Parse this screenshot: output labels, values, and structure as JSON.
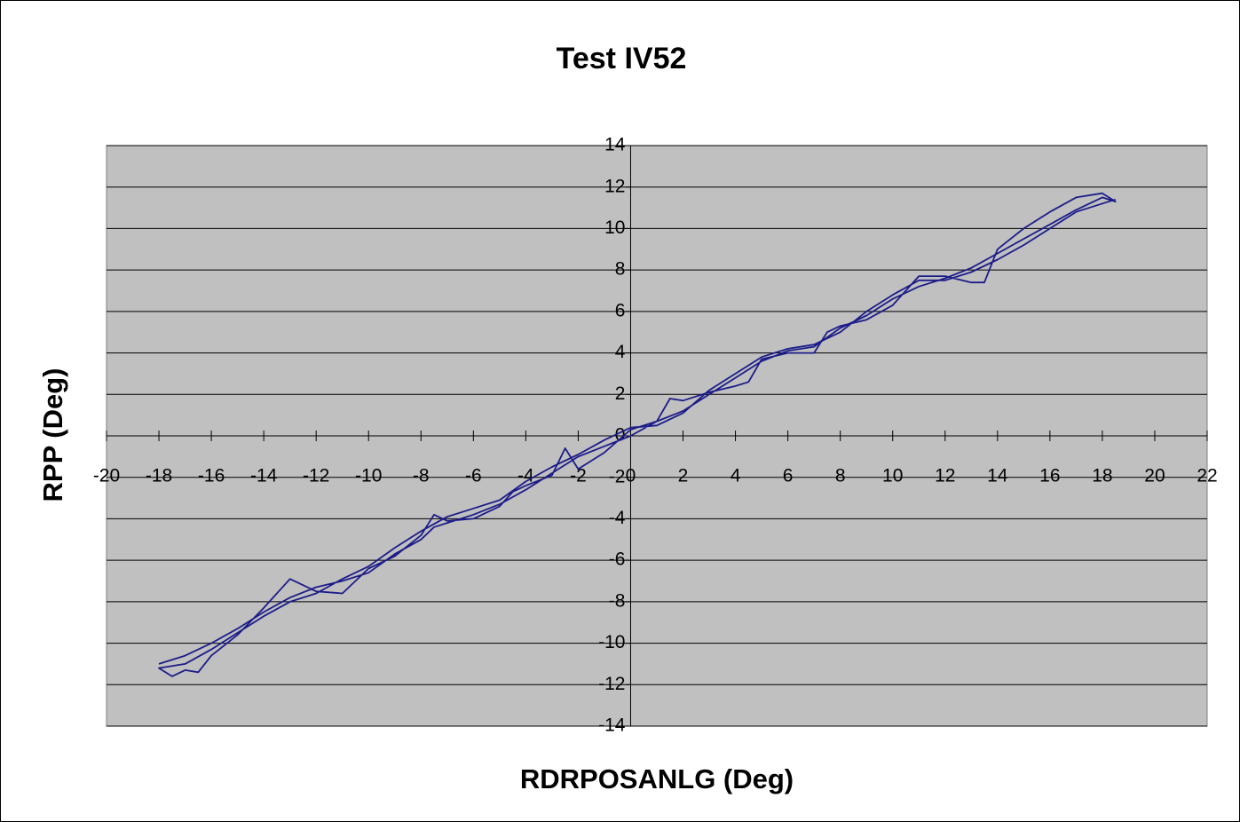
{
  "chart_data": {
    "type": "line",
    "title": "Test IV52",
    "xlabel": "RDRPOSANLG (Deg)",
    "ylabel": "RPP (Deg)",
    "xlim": [
      -20,
      22
    ],
    "ylim": [
      -14,
      14
    ],
    "xticks": [
      -20,
      -18,
      -16,
      -14,
      -12,
      -10,
      -8,
      -6,
      -4,
      -2,
      0,
      2,
      4,
      6,
      8,
      10,
      12,
      14,
      16,
      18,
      20,
      22
    ],
    "yticks": [
      -14,
      -12,
      -10,
      -8,
      -6,
      -4,
      -2,
      0,
      2,
      4,
      6,
      8,
      10,
      12,
      14
    ],
    "grid": true,
    "background": "#c0c0c0",
    "series": [
      {
        "color": "#1c1c8a",
        "x": [
          -18,
          -17,
          -16,
          -15,
          -14,
          -13,
          -12,
          -11,
          -10,
          -9,
          -8,
          -7.5,
          -7,
          -6,
          -5,
          -4,
          -3,
          -2,
          -1,
          0,
          1,
          2,
          3,
          4,
          5,
          6,
          7,
          8,
          9,
          10,
          11,
          12,
          13,
          14,
          15,
          16,
          17,
          18,
          18.5,
          18,
          17,
          16,
          15,
          14,
          13.5,
          13,
          12,
          11,
          10,
          9,
          8,
          7.5,
          7,
          6,
          5,
          4.5,
          4,
          3,
          2,
          1.5,
          1,
          0,
          -1,
          -2,
          -2.5,
          -3,
          -4,
          -4.5,
          -5,
          -6,
          -7,
          -7.5,
          -8,
          -9,
          -10,
          -11,
          -12,
          -13,
          -14,
          -15,
          -16,
          -16.5,
          -17,
          -17.5,
          -18,
          -17,
          -16,
          -15,
          -14,
          -13,
          -12,
          -11,
          -10,
          -9,
          -8,
          -7,
          -6,
          -5,
          -4,
          -3,
          -2,
          -1,
          0,
          1,
          2,
          3,
          4,
          5,
          6,
          7,
          8,
          9,
          10,
          11,
          12,
          13,
          14,
          15,
          16,
          17,
          18.5
        ],
        "values": [
          -11,
          -10.6,
          -10,
          -9.3,
          -8.5,
          -7.8,
          -7.3,
          -7,
          -6.6,
          -5.7,
          -5,
          -4.4,
          -4.2,
          -3.8,
          -3.3,
          -2.6,
          -1.8,
          -1,
          -0.5,
          0,
          0.7,
          1.2,
          2,
          2.8,
          3.6,
          4.1,
          4.3,
          5.2,
          5.8,
          6.6,
          7.2,
          7.6,
          8.1,
          8.8,
          9.5,
          10.2,
          10.9,
          11.5,
          11.3,
          11.7,
          11.5,
          10.8,
          10,
          9,
          7.4,
          7.4,
          7.7,
          7.7,
          6.3,
          5.6,
          5.3,
          5,
          4,
          4,
          3.7,
          2.6,
          2.4,
          2.1,
          1.7,
          1.8,
          0.7,
          0.3,
          -0.8,
          -1.6,
          -0.6,
          -1.9,
          -2.4,
          -2.7,
          -3.4,
          -4,
          -4.1,
          -3.8,
          -4.8,
          -5.8,
          -6.4,
          -7.6,
          -7.5,
          -6.9,
          -8.3,
          -9.6,
          -10.6,
          -11.4,
          -11.3,
          -11.6,
          -11.2,
          -11,
          -10.3,
          -9.5,
          -8.7,
          -8,
          -7.6,
          -6.9,
          -6.3,
          -5.4,
          -4.6,
          -3.9,
          -3.5,
          -3.1,
          -2.2,
          -1.5,
          -0.9,
          -0.2,
          0.4,
          0.5,
          1.1,
          2.2,
          3,
          3.8,
          4.2,
          4.4,
          5,
          6,
          6.8,
          7.5,
          7.5,
          7.9,
          8.5,
          9.2,
          10,
          10.8,
          11.4
        ]
      }
    ]
  }
}
